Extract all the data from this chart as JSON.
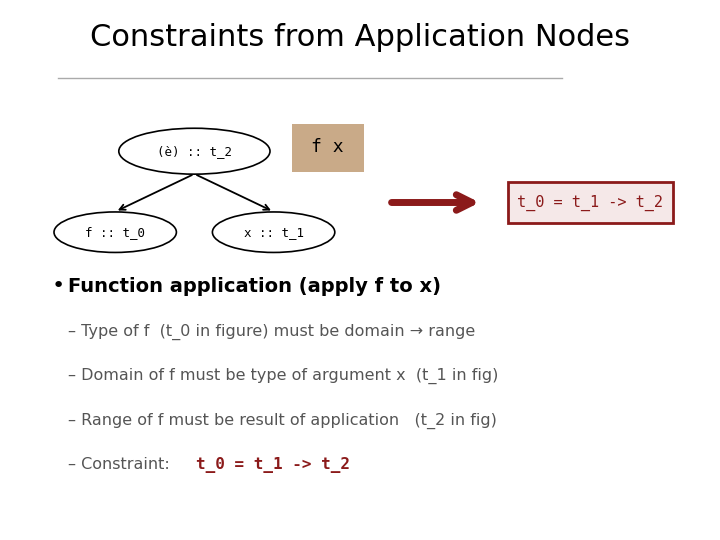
{
  "title": "Constraints from Application Nodes",
  "title_fontsize": 22,
  "title_color": "#000000",
  "background_color": "#ffffff",
  "node_top_label": "(è) :: t_2",
  "node_left_label": "f :: t_0",
  "node_right_label": "x :: t_1",
  "label_fx": "f x",
  "label_constraint": "t_0 = t_1 -> t_2",
  "node_color": "#ffffff",
  "node_edge_color": "#000000",
  "label_fx_bg": "#c9aa88",
  "constraint_box_color": "#8b1a1a",
  "constraint_text_color": "#8b1a1a",
  "arrow_color": "#8b1a1a",
  "bullet_text": "Function application (apply f to x)",
  "bullet_fontsize": 14,
  "sub_fontsize": 11.5,
  "line_color": "#aaaaaa",
  "mono_color": "#8b1a1a",
  "text_color": "#555555"
}
